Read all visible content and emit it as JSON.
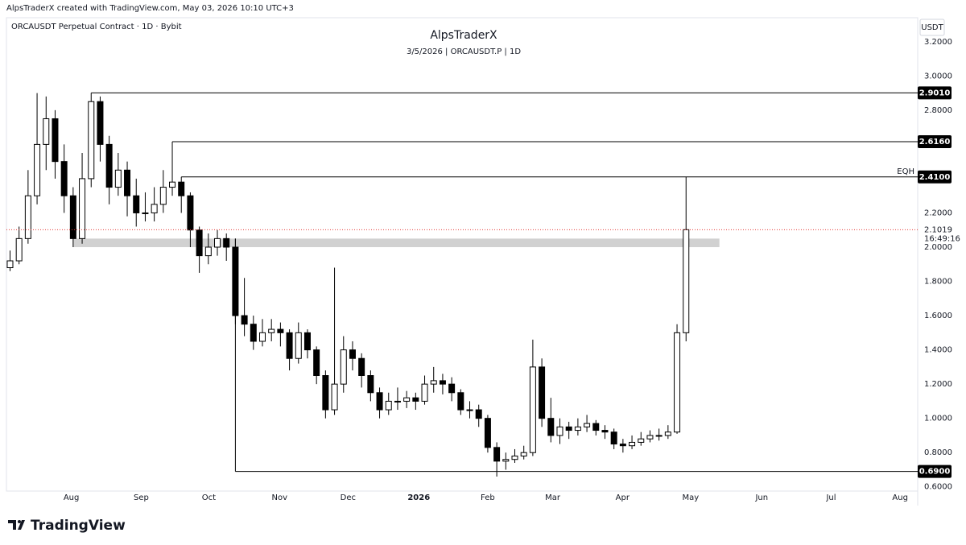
{
  "chart_data": {
    "type": "candlestick",
    "header": "AlpsTraderX created with TradingView.com, May 03, 2026 10:10 UTC+3",
    "symbol": "ORCAUSDT Perpetual Contract · 1D · Bybit",
    "title": "AlpsTraderX",
    "subtitle": "3/5/2026 | ORCAUSDT.P | 1D",
    "currency": "USDT",
    "brand": "TradingView",
    "up_color": "#ffffff",
    "down_color": "#000000",
    "open": [
      1.88,
      1.92,
      2.05,
      2.3,
      2.6,
      2.75,
      2.5,
      2.3,
      2.05,
      2.4,
      2.85,
      2.6,
      2.35,
      2.45,
      2.3,
      2.2,
      2.2,
      2.25,
      2.35,
      2.38,
      2.3,
      2.1,
      1.95,
      2.0,
      2.05,
      2.0,
      1.6,
      1.55,
      1.45,
      1.5,
      1.52,
      1.5,
      1.35,
      1.5,
      1.4,
      1.25,
      1.05,
      1.2,
      1.4,
      1.35,
      1.25,
      1.15,
      1.05,
      1.1,
      1.1,
      1.12,
      1.1,
      1.2,
      1.22,
      1.2,
      1.15,
      1.05,
      1.05,
      1.0,
      0.83,
      0.75,
      0.76,
      0.78,
      0.8,
      1.3,
      1.0,
      0.9,
      0.95,
      0.93,
      0.95,
      0.97,
      0.93,
      0.92,
      0.85,
      0.84,
      0.86,
      0.88,
      0.9,
      0.9,
      0.92,
      1.5
    ],
    "high": [
      1.98,
      2.12,
      2.45,
      2.9,
      2.88,
      2.8,
      2.6,
      2.35,
      2.55,
      2.901,
      2.88,
      2.65,
      2.55,
      2.5,
      2.4,
      2.32,
      2.35,
      2.45,
      2.616,
      2.41,
      2.32,
      2.12,
      2.08,
      2.1,
      2.08,
      2.05,
      1.82,
      1.6,
      1.58,
      1.58,
      1.56,
      1.52,
      1.56,
      1.52,
      1.42,
      1.28,
      1.88,
      1.48,
      1.45,
      1.38,
      1.28,
      1.18,
      1.15,
      1.18,
      1.16,
      1.15,
      1.25,
      1.3,
      1.26,
      1.24,
      1.17,
      1.1,
      1.08,
      1.02,
      0.86,
      0.8,
      0.82,
      0.84,
      1.46,
      1.35,
      1.12,
      1.0,
      0.98,
      1.0,
      1.02,
      0.99,
      0.96,
      0.94,
      0.88,
      0.9,
      0.92,
      0.93,
      0.94,
      0.96,
      1.55,
      2.41
    ],
    "low": [
      1.86,
      1.9,
      2.02,
      2.25,
      2.45,
      2.4,
      2.2,
      2.0,
      2.02,
      2.35,
      2.5,
      2.25,
      2.3,
      2.18,
      2.12,
      2.15,
      2.15,
      2.2,
      2.3,
      2.2,
      2.0,
      1.85,
      1.9,
      1.95,
      1.92,
      1.55,
      1.48,
      1.4,
      1.42,
      1.45,
      1.42,
      1.28,
      1.32,
      1.35,
      1.2,
      1.0,
      1.02,
      1.15,
      1.28,
      1.18,
      1.1,
      1.0,
      1.02,
      1.05,
      1.06,
      1.05,
      1.08,
      1.15,
      1.14,
      1.1,
      1.02,
      1.0,
      0.95,
      0.8,
      0.66,
      0.7,
      0.74,
      0.76,
      0.78,
      0.95,
      0.86,
      0.85,
      0.88,
      0.9,
      0.92,
      0.9,
      0.88,
      0.82,
      0.8,
      0.82,
      0.84,
      0.86,
      0.87,
      0.88,
      0.91,
      1.45
    ],
    "close": [
      1.92,
      2.05,
      2.3,
      2.6,
      2.75,
      2.5,
      2.3,
      2.05,
      2.4,
      2.85,
      2.6,
      2.35,
      2.45,
      2.3,
      2.2,
      2.2,
      2.25,
      2.35,
      2.38,
      2.3,
      2.1,
      1.95,
      2.0,
      2.05,
      2.0,
      1.6,
      1.55,
      1.45,
      1.5,
      1.52,
      1.5,
      1.35,
      1.5,
      1.4,
      1.25,
      1.05,
      1.2,
      1.4,
      1.35,
      1.25,
      1.15,
      1.05,
      1.1,
      1.1,
      1.12,
      1.1,
      1.2,
      1.22,
      1.2,
      1.15,
      1.05,
      1.05,
      1.0,
      0.83,
      0.75,
      0.76,
      0.78,
      0.8,
      1.3,
      1.0,
      0.9,
      0.95,
      0.93,
      0.95,
      0.97,
      0.93,
      0.92,
      0.85,
      0.84,
      0.86,
      0.88,
      0.9,
      0.9,
      0.92,
      1.5,
      2.1019
    ],
    "xlim": [
      -0.4,
      100.7
    ],
    "xticks": [
      {
        "value": 6.8,
        "label": "Aug"
      },
      {
        "value": 14.55,
        "label": "Sep"
      },
      {
        "value": 22.05,
        "label": "Oct"
      },
      {
        "value": 29.9,
        "label": "Nov"
      },
      {
        "value": 37.5,
        "label": "Dec"
      },
      {
        "value": 45.35,
        "label": "2026"
      },
      {
        "value": 53.0,
        "label": "Feb"
      },
      {
        "value": 60.2,
        "label": "Mar"
      },
      {
        "value": 67.95,
        "label": "Apr"
      },
      {
        "value": 75.5,
        "label": "May"
      },
      {
        "value": 83.4,
        "label": "Jun"
      },
      {
        "value": 91.1,
        "label": "Jul"
      },
      {
        "value": 98.75,
        "label": "Aug"
      }
    ],
    "ylim": [
      0.58,
      3.34
    ],
    "yticks": [
      {
        "value": 3.2,
        "label": "3.2000"
      },
      {
        "value": 3.0,
        "label": "3.0000"
      },
      {
        "value": 2.8,
        "label": "2.8000"
      },
      {
        "value": 2.2,
        "label": "2.2000"
      },
      {
        "value": 2.0,
        "label": "2.0000"
      },
      {
        "value": 1.8,
        "label": "1.8000"
      },
      {
        "value": 1.6,
        "label": "1.6000"
      },
      {
        "value": 1.4,
        "label": "1.4000"
      },
      {
        "value": 1.2,
        "label": "1.2000"
      },
      {
        "value": 1.0,
        "label": "1.0000"
      },
      {
        "value": 0.8,
        "label": "0.8000"
      },
      {
        "value": 0.6,
        "label": "0.6000"
      }
    ],
    "grid": false,
    "levels": [
      {
        "value": 2.901,
        "label": "2.9010"
      },
      {
        "value": 2.616,
        "label": "2.6160"
      },
      {
        "value": 2.41,
        "label": "2.4100",
        "tag": "EQH"
      },
      {
        "value": 0.69,
        "label": "0.6900"
      }
    ],
    "zone": [
      2.0,
      2.05
    ],
    "last_price": {
      "value": 2.1019,
      "label": "2.1019"
    },
    "countdown": "16:49:16"
  }
}
